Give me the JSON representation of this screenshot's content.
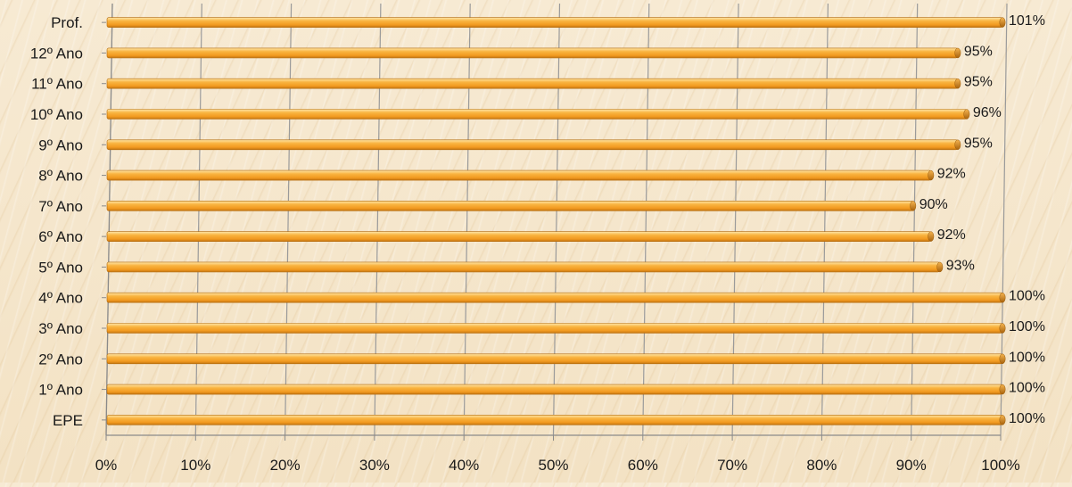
{
  "chart_data": {
    "type": "bar",
    "orientation": "horizontal",
    "title": "",
    "xlabel": "",
    "ylabel": "",
    "categories": [
      "EPE",
      "1º Ano",
      "2º Ano",
      "3º Ano",
      "4º Ano",
      "5º Ano",
      "6º Ano",
      "7º Ano",
      "8º Ano",
      "9º Ano",
      "10º Ano",
      "11º Ano",
      "12º Ano",
      "Prof."
    ],
    "values": [
      100,
      100,
      100,
      100,
      100,
      93,
      92,
      90,
      92,
      95,
      96,
      95,
      95,
      101
    ],
    "value_labels": [
      "100%",
      "100%",
      "100%",
      "100%",
      "100%",
      "93%",
      "92%",
      "90%",
      "92%",
      "95%",
      "96%",
      "95%",
      "95%",
      "101%"
    ],
    "xlim": [
      0,
      100
    ],
    "x_ticks": [
      "0%",
      "10%",
      "20%",
      "30%",
      "40%",
      "50%",
      "60%",
      "70%",
      "80%",
      "90%",
      "100%"
    ],
    "grid": true,
    "legend": "none",
    "colors": {
      "bar_light": "#ffd27a",
      "bar_mid": "#f7a52c",
      "bar_dark": "#c97a12",
      "grid": "#9a9a9a",
      "axis": "#8a8a8a",
      "text": "#1a1a1a"
    }
  }
}
